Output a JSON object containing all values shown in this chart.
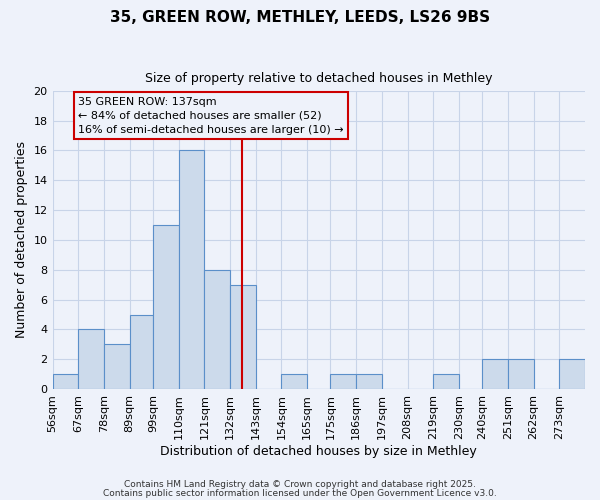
{
  "title": "35, GREEN ROW, METHLEY, LEEDS, LS26 9BS",
  "subtitle": "Size of property relative to detached houses in Methley",
  "xlabel": "Distribution of detached houses by size in Methley",
  "ylabel": "Number of detached properties",
  "bin_labels": [
    "56sqm",
    "67sqm",
    "78sqm",
    "89sqm",
    "99sqm",
    "110sqm",
    "121sqm",
    "132sqm",
    "143sqm",
    "154sqm",
    "165sqm",
    "175sqm",
    "186sqm",
    "197sqm",
    "208sqm",
    "219sqm",
    "230sqm",
    "240sqm",
    "251sqm",
    "262sqm",
    "273sqm"
  ],
  "bin_edges": [
    56,
    67,
    78,
    89,
    99,
    110,
    121,
    132,
    143,
    154,
    165,
    175,
    186,
    197,
    208,
    219,
    230,
    240,
    251,
    262,
    273
  ],
  "bar_heights": [
    1,
    4,
    3,
    5,
    11,
    16,
    8,
    7,
    0,
    1,
    0,
    1,
    1,
    0,
    0,
    1,
    0,
    2,
    2,
    0,
    2
  ],
  "bar_color": "#ccdaeb",
  "bar_edge_color": "#5b8fc9",
  "property_line_x": 137,
  "annotation_title": "35 GREEN ROW: 137sqm",
  "annotation_line1": "← 84% of detached houses are smaller (52)",
  "annotation_line2": "16% of semi-detached houses are larger (10) →",
  "annotation_box_edge": "#cc0000",
  "vline_color": "#cc0000",
  "grid_color": "#c8d4e8",
  "background_color": "#eef2fa",
  "ylim": [
    0,
    20
  ],
  "yticks": [
    0,
    2,
    4,
    6,
    8,
    10,
    12,
    14,
    16,
    18,
    20
  ],
  "footer1": "Contains HM Land Registry data © Crown copyright and database right 2025.",
  "footer2": "Contains public sector information licensed under the Open Government Licence v3.0."
}
